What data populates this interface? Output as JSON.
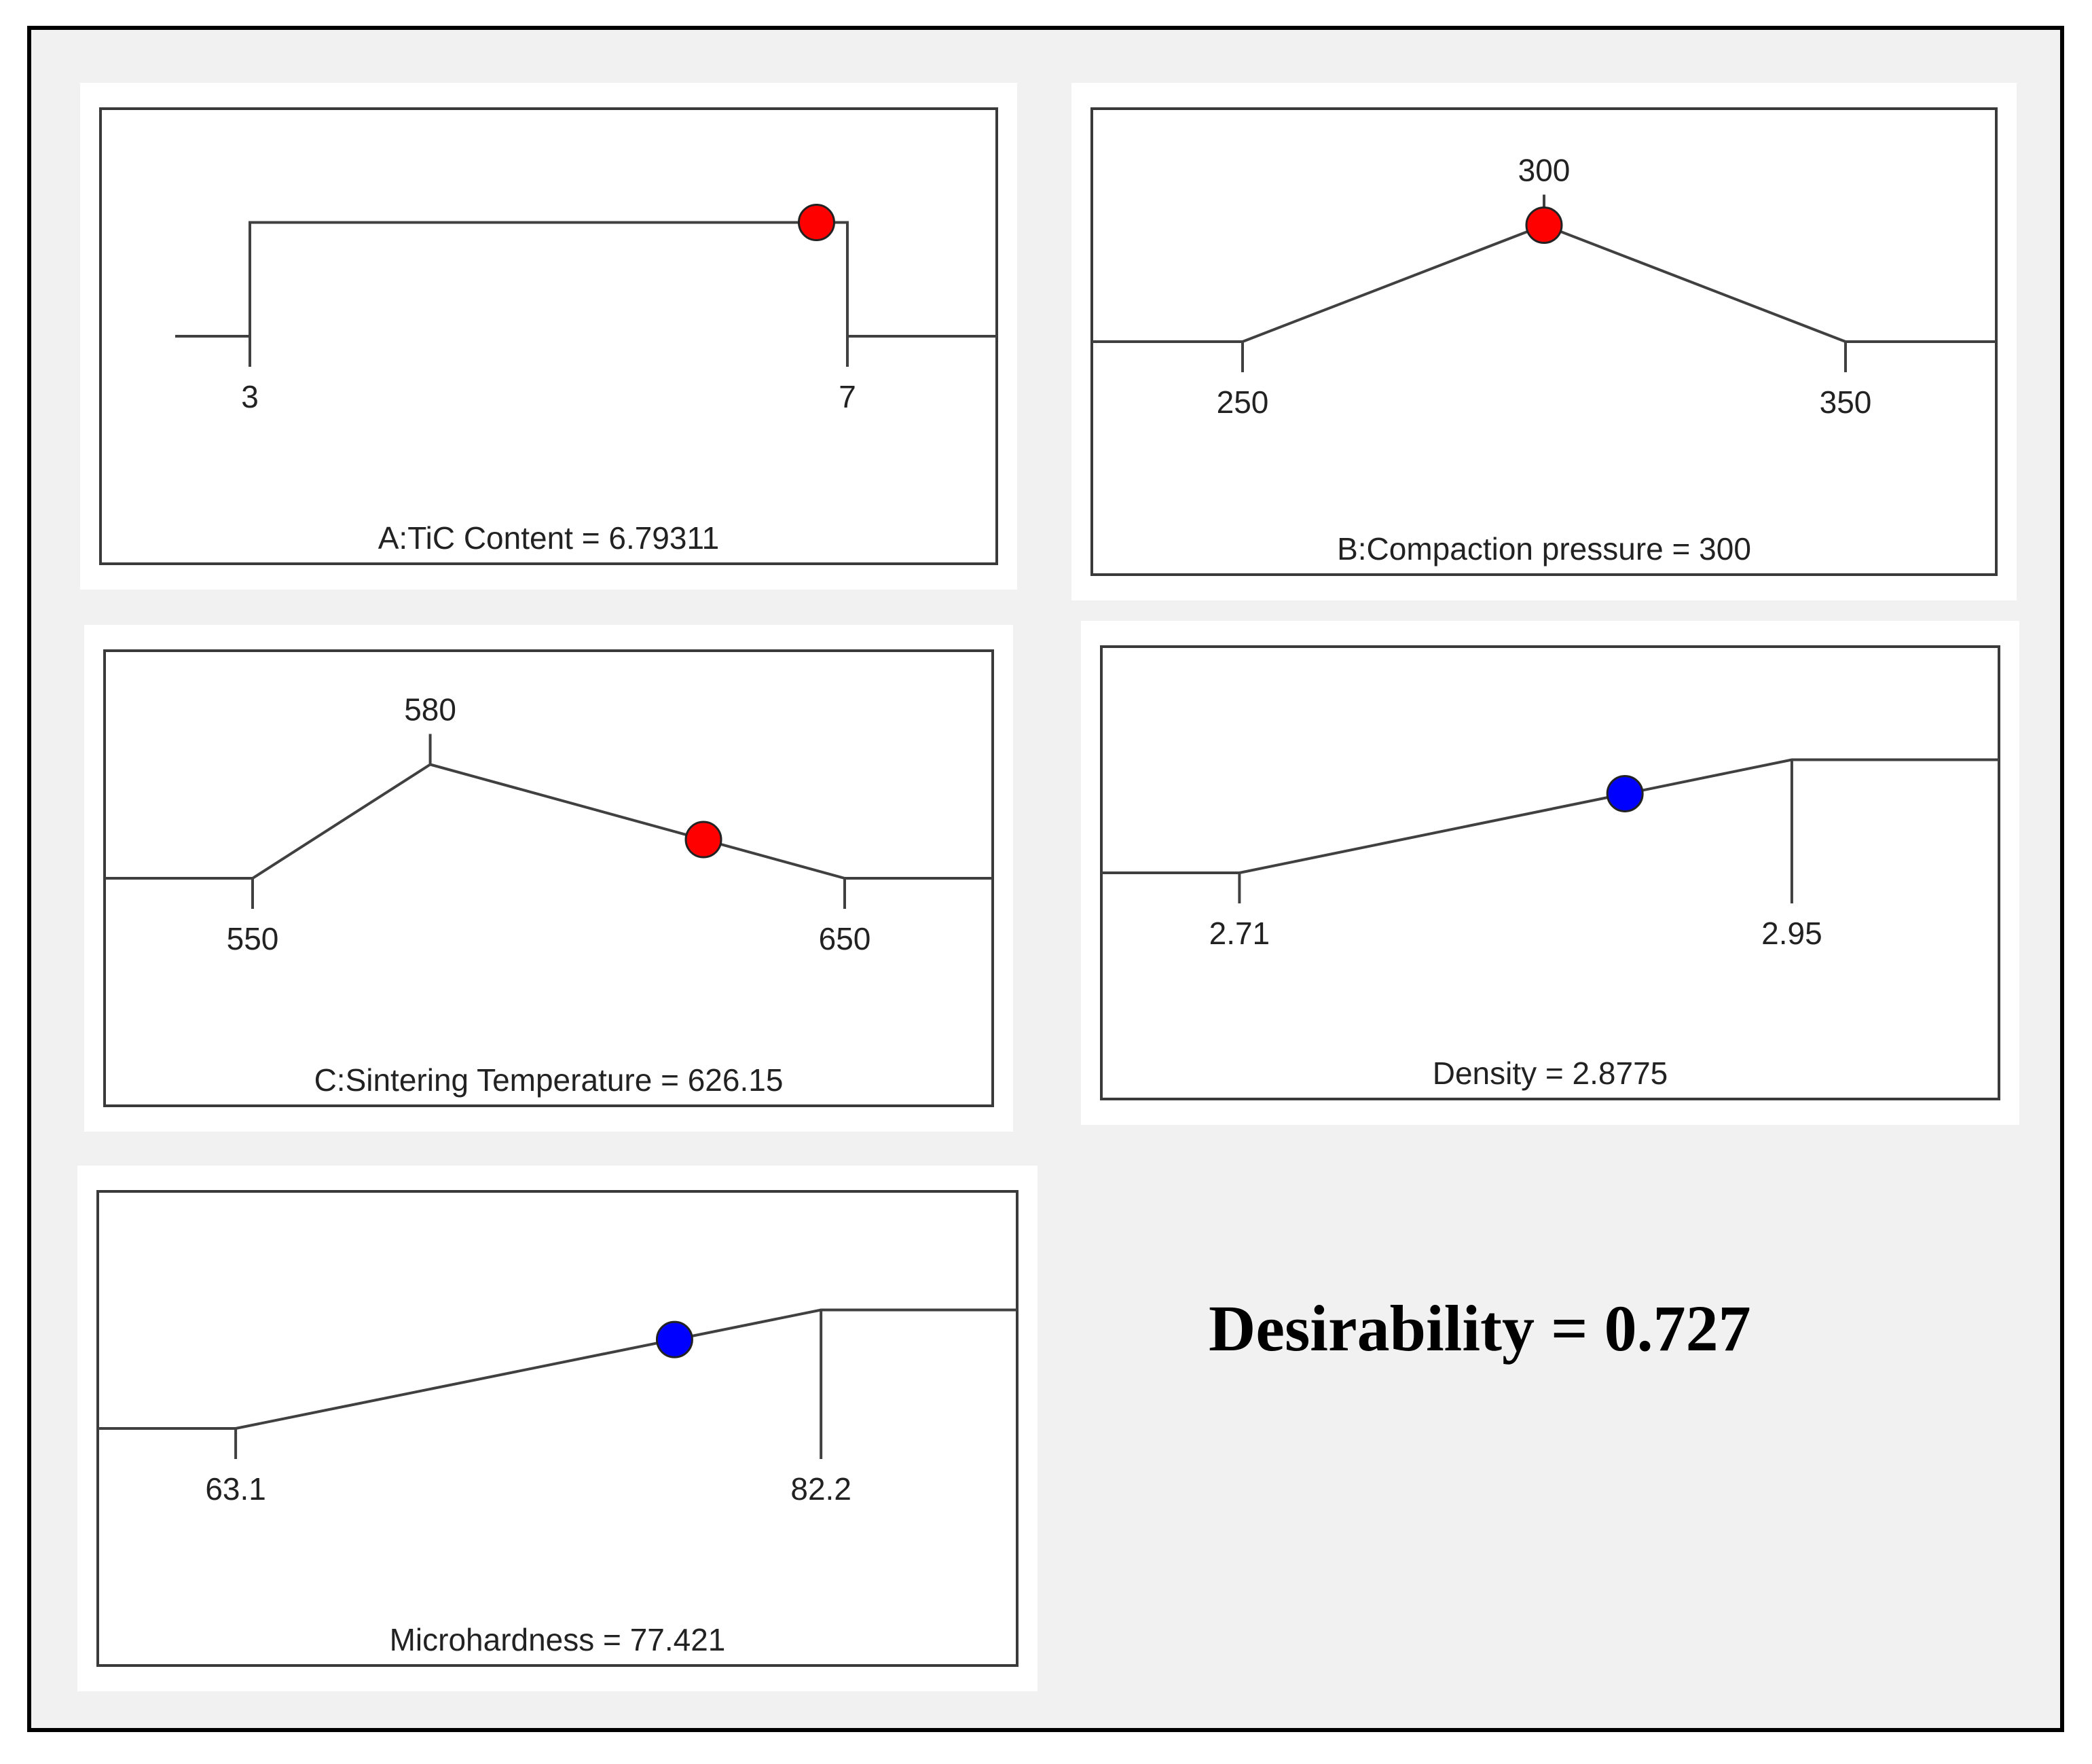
{
  "desirability_label": "Desirability = 0.727",
  "colors": {
    "factor_dot": "#ff0000",
    "response_dot": "#0000ff"
  },
  "chart_data": [
    {
      "type": "line",
      "id": "tic",
      "title": "A:TiC Content = 6.79311",
      "curve": [
        [
          2.5,
          0
        ],
        [
          3,
          0
        ],
        [
          3,
          1
        ],
        [
          7,
          1
        ],
        [
          7,
          0
        ],
        [
          8.0,
          0
        ]
      ],
      "xlim": [
        2.0,
        8.0
      ],
      "ticks": [
        {
          "x": 3,
          "label": "3",
          "pos": "low"
        },
        {
          "x": 7,
          "label": "7",
          "pos": "low"
        }
      ],
      "point": {
        "x": 6.79311,
        "y": 1,
        "color": "#ff0000"
      }
    },
    {
      "type": "line",
      "id": "pressure",
      "title": "B:Compaction pressure = 300",
      "curve": [
        [
          225,
          0
        ],
        [
          250,
          0
        ],
        [
          300,
          1
        ],
        [
          350,
          0
        ],
        [
          375,
          0
        ]
      ],
      "xlim": [
        225,
        375
      ],
      "ticks": [
        {
          "x": 250,
          "label": "250",
          "pos": "low"
        },
        {
          "x": 300,
          "label": "300",
          "pos": "high"
        },
        {
          "x": 350,
          "label": "350",
          "pos": "low"
        }
      ],
      "point": {
        "x": 300,
        "y": 1,
        "color": "#ff0000"
      }
    },
    {
      "type": "line",
      "id": "temperature",
      "title": "C:Sintering Temperature = 626.15",
      "curve": [
        [
          525,
          0
        ],
        [
          550,
          0
        ],
        [
          580,
          1
        ],
        [
          650,
          0
        ],
        [
          675,
          0
        ]
      ],
      "xlim": [
        525,
        675
      ],
      "ticks": [
        {
          "x": 550,
          "label": "550",
          "pos": "low"
        },
        {
          "x": 580,
          "label": "580",
          "pos": "high"
        },
        {
          "x": 650,
          "label": "650",
          "pos": "low"
        }
      ],
      "point": {
        "x": 626.15,
        "y": 0.34,
        "color": "#ff0000"
      }
    },
    {
      "type": "line",
      "id": "density",
      "title": "Density = 2.8775",
      "curve": [
        [
          2.65,
          0
        ],
        [
          2.71,
          0
        ],
        [
          2.95,
          1
        ],
        [
          3.04,
          1
        ]
      ],
      "xlim": [
        2.65,
        3.04
      ],
      "ticks": [
        {
          "x": 2.71,
          "label": "2.71",
          "pos": "low"
        },
        {
          "x": 2.95,
          "label": "2.95",
          "pos": "low"
        }
      ],
      "point": {
        "x": 2.8775,
        "y": 0.7,
        "color": "#0000ff"
      }
    },
    {
      "type": "line",
      "id": "microhardness",
      "title": "Microhardness = 77.421",
      "curve": [
        [
          58.6,
          0
        ],
        [
          63.1,
          0
        ],
        [
          82.2,
          1
        ],
        [
          88.6,
          1
        ]
      ],
      "xlim": [
        58.6,
        88.6
      ],
      "ticks": [
        {
          "x": 63.1,
          "label": "63.1",
          "pos": "low"
        },
        {
          "x": 82.2,
          "label": "82.2",
          "pos": "low"
        }
      ],
      "point": {
        "x": 77.421,
        "y": 0.75,
        "color": "#0000ff"
      }
    }
  ]
}
